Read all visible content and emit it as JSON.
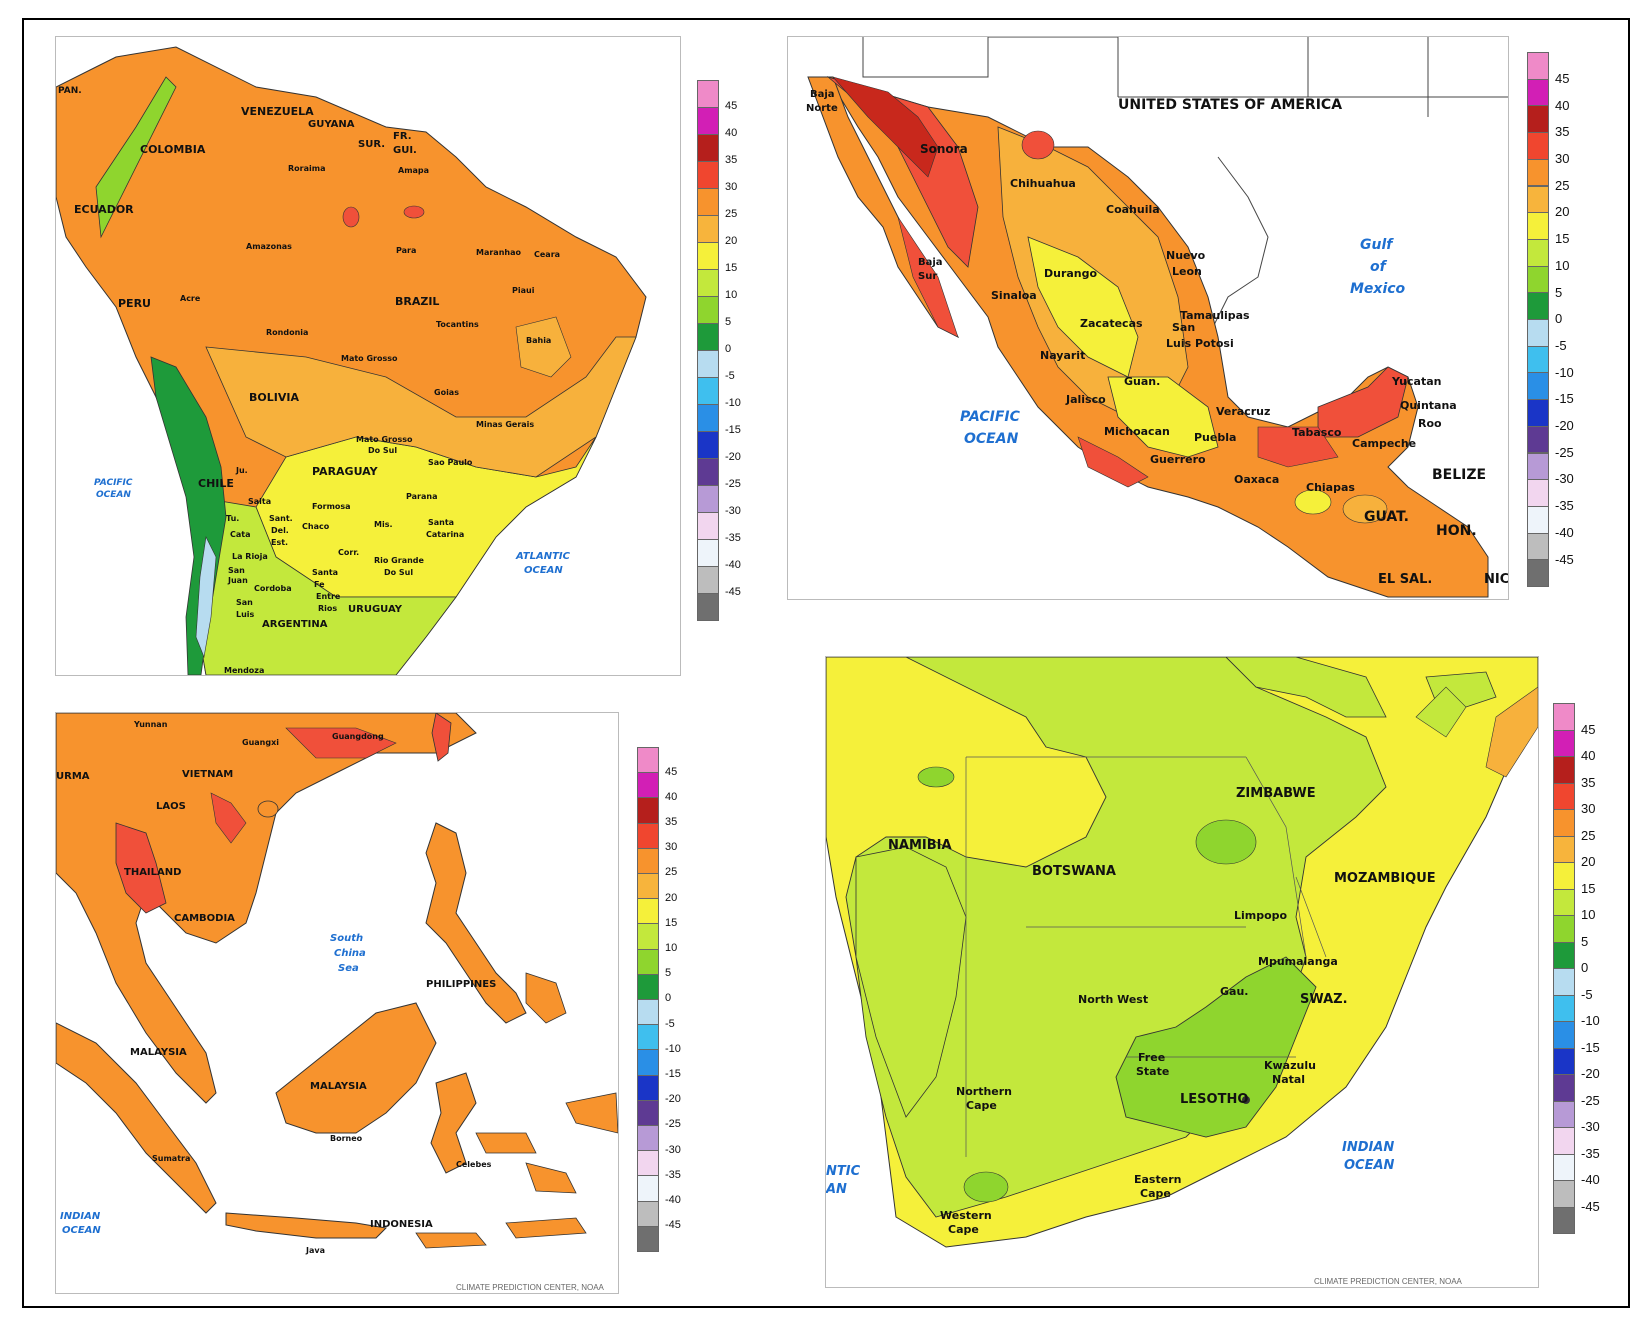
{
  "colors": {
    "ocean": "#ffffff",
    "border": "#333333",
    "ocean_label": "#1e6fd0",
    "t_lt_minus40": "#6b6b6b",
    "t_35": "#c8281c",
    "t_30": "#f0503a",
    "t_25": "#f7932d",
    "t_20": "#f7b13c",
    "t_15": "#f5f03a",
    "t_10": "#c3e83c",
    "t_5": "#8fd52e",
    "t_0": "#1e9a3a",
    "t_m5": "#b7dcf0"
  },
  "legend_scale": {
    "ticks": [
      "45",
      "40",
      "35",
      "30",
      "25",
      "20",
      "15",
      "10",
      "5",
      "0",
      "-5",
      "-10",
      "-15",
      "-20",
      "-25",
      "-30",
      "-35",
      "-40",
      "-45"
    ],
    "swatch_colors": [
      "#ef8ac8",
      "#d21fb5",
      "#b51f1c",
      "#f0462f",
      "#f7932d",
      "#f7b43c",
      "#f5f03a",
      "#c3e83c",
      "#8fd52e",
      "#1e9a3a",
      "#b7dcf0",
      "#3fbfee",
      "#2a8fe6",
      "#1a35c7",
      "#5e3a93",
      "#b79ad6",
      "#f2d6ef",
      "#eef4fa",
      "#bdbdbd",
      "#6f6f6f"
    ]
  },
  "panels": {
    "south_america": {
      "labels": {
        "pan": "PAN.",
        "venezuela": "VENEZUELA",
        "guyana": "GUYANA",
        "sur": "SUR.",
        "fr_gui": "FR.\nGUI.",
        "colombia": "COLOMBIA",
        "roraima": "Roraima",
        "amapa": "Amapa",
        "ecuador": "ECUADOR",
        "amazonas": "Amazonas",
        "para": "Para",
        "maranhao": "Maranhao",
        "ceara": "Ceara",
        "piaui": "Piaui",
        "peru": "PERU",
        "acre": "Acre",
        "brazil": "BRAZIL",
        "rondonia": "Rondonia",
        "tocantins": "Tocantins",
        "bahia": "Bahia",
        "mato_grosso": "Mato Grosso",
        "goias": "Goias",
        "bolivia": "BOLIVIA",
        "minas_gerais": "Minas Gerais",
        "mato_grosso_do_sul": "Mato Grosso\nDo Sul",
        "sao_paulo": "Sao Paulo",
        "paraguay": "PARAGUAY",
        "chile": "CHILE",
        "formosa": "Formosa",
        "parana": "Parana",
        "salta": "Salta",
        "jujuy": "Ju.",
        "chaco": "Chaco",
        "mis": "Mis.",
        "santa_catarina": "Santa\nCatarina",
        "sant_del_est": "Sant.\nDel.\nEst.",
        "tuc": "Tu.",
        "cata": "Cata",
        "la_rioja": "La Rioja",
        "corr": "Corr.",
        "rio_grande_do_sul": "Rio Grande\nDo Sul",
        "san_juan": "San\nJuan",
        "santa_fe": "Santa\nFe",
        "cordoba": "Cordoba",
        "entre_rios": "Entre\nRios",
        "san_luis": "San\nLuis",
        "uruguay": "URUGUAY",
        "argentina": "ARGENTINA",
        "mendoza": "Mendoza",
        "pacific_ocean": "PACIFIC\nOCEAN",
        "atlantic_ocean": "ATLANTIC\nOCEAN"
      }
    },
    "mexico": {
      "labels": {
        "usa": "UNITED STATES OF AMERICA",
        "baja_norte": "Baja\nNorte",
        "sonora": "Sonora",
        "chihuahua": "Chihuahua",
        "coahuila": "Coahuila",
        "gulf": "Gulf\nof\nMexico",
        "baja_sur": "Baja\nSur",
        "nuevo_leon": "Nuevo\nLeon",
        "durango": "Durango",
        "sinaloa": "Sinaloa",
        "tamaulipas": "Tamaulipas",
        "zacatecas": "Zacatecas",
        "san_luis_potosi": "San\nLuis Potosi",
        "nayarit": "Nayarit",
        "guan": "Guan.",
        "pacific_ocean": "PACIFIC\nOCEAN",
        "jalisco": "Jalisco",
        "veracruz": "Veracruz",
        "yucatan": "Yucatan",
        "quintana_roo": "Quintana\nRoo",
        "michoacan": "Michoacan",
        "puebla": "Puebla",
        "tabasco": "Tabasco",
        "campeche": "Campeche",
        "guerrero": "Guerrero",
        "oaxaca": "Oaxaca",
        "belize": "BELIZE",
        "chiapas": "Chiapas",
        "guat": "GUAT.",
        "hon": "HON.",
        "el_sal": "EL SAL.",
        "nic": "NIC"
      }
    },
    "southeast_asia": {
      "labels": {
        "yunnan": "Yunnan",
        "guangxi": "Guangxi",
        "guangdong": "Guangdong",
        "burma": "URMA",
        "vietnam": "VIETNAM",
        "laos": "LAOS",
        "thailand": "THAILAND",
        "cambodia": "CAMBODIA",
        "south_china_sea": "South\nChina\nSea",
        "philippines": "PHILIPPINES",
        "malaysia_w": "MALAYSIA",
        "malaysia_e": "MALAYSIA",
        "borneo": "Borneo",
        "sumatra": "Sumatra",
        "celebes": "Celebes",
        "indian_ocean": "INDIAN\nOCEAN",
        "indonesia": "INDONESIA",
        "java": "Java"
      },
      "credit": "CLIMATE PREDICTION CENTER, NOAA"
    },
    "southern_africa": {
      "labels": {
        "zimbabwe": "ZIMBABWE",
        "namibia": "NAMIBIA",
        "botswana": "BOTSWANA",
        "mozambique": "MOZAMBIQUE",
        "limpopo": "Limpopo",
        "mpumalanga": "Mpumalanga",
        "gau": "Gau.",
        "north_west": "North West",
        "swaz": "SWAZ.",
        "free_state": "Free\nState",
        "kwazulu_natal": "Kwazulu\nNatal",
        "northern_cape": "Northern\nCape",
        "lesotho": "LESOTHO",
        "atlantic_ocean": "NTIC\nAN",
        "eastern_cape": "Eastern\nCape",
        "indian_ocean": "INDIAN\nOCEAN",
        "western_cape": "Western\nCape"
      },
      "credit": "CLIMATE PREDICTION CENTER, NOAA"
    }
  }
}
